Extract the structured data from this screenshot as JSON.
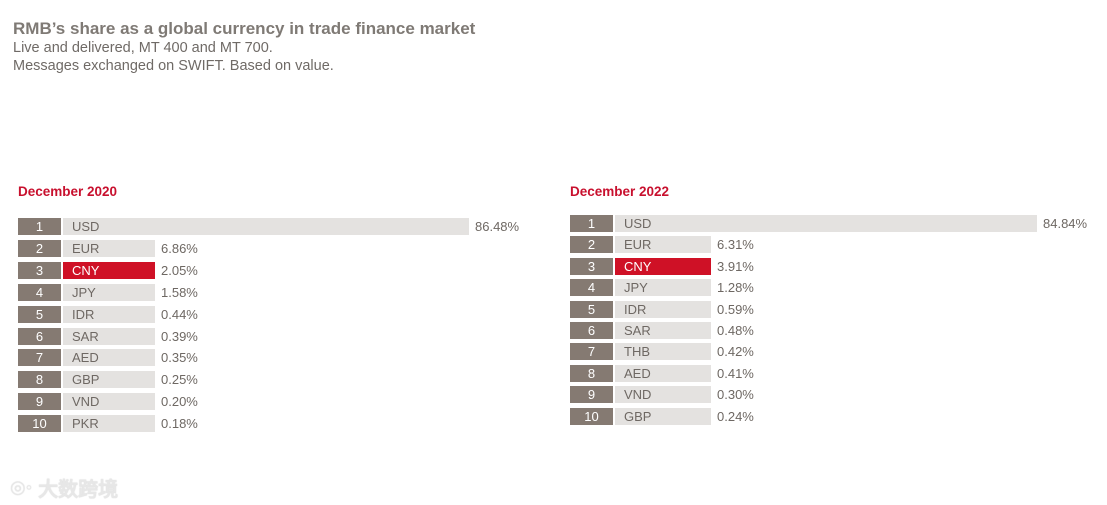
{
  "header": {
    "title": "RMB’s share as a global currency in trade finance market",
    "subtitle_line1": "Live and delivered, MT 400 and MT 700.",
    "subtitle_line2": "Messages exchanged on SWIFT. Based on value."
  },
  "watermark": {
    "text": "大数跨境"
  },
  "colors": {
    "highlight": "#cf1126",
    "bar": "#e4e2e0",
    "rank": "#857a72",
    "title": "#c8102e"
  },
  "chart_data": [
    {
      "type": "bar",
      "orientation": "horizontal",
      "title": "December 2020",
      "highlight": "CNY",
      "ranks": [
        1,
        2,
        3,
        4,
        5,
        6,
        7,
        8,
        9,
        10
      ],
      "categories": [
        "USD",
        "EUR",
        "CNY",
        "JPY",
        "IDR",
        "SAR",
        "AED",
        "GBP",
        "VND",
        "PKR"
      ],
      "values": [
        86.48,
        6.86,
        2.05,
        1.58,
        0.44,
        0.39,
        0.35,
        0.25,
        0.2,
        0.18
      ],
      "labels": [
        "86.48%",
        "6.86%",
        "2.05%",
        "1.58%",
        "0.44%",
        "0.39%",
        "0.35%",
        "0.25%",
        "0.20%",
        "0.18%"
      ]
    },
    {
      "type": "bar",
      "orientation": "horizontal",
      "title": "December 2022",
      "highlight": "CNY",
      "ranks": [
        1,
        2,
        3,
        4,
        5,
        6,
        7,
        8,
        9,
        10
      ],
      "categories": [
        "USD",
        "EUR",
        "CNY",
        "JPY",
        "IDR",
        "SAR",
        "THB",
        "AED",
        "VND",
        "GBP"
      ],
      "values": [
        84.84,
        6.31,
        3.91,
        1.28,
        0.59,
        0.48,
        0.42,
        0.41,
        0.3,
        0.24
      ],
      "labels": [
        "84.84%",
        "6.31%",
        "3.91%",
        "1.28%",
        "0.59%",
        "0.48%",
        "0.42%",
        "0.41%",
        "0.30%",
        "0.24%"
      ]
    }
  ]
}
